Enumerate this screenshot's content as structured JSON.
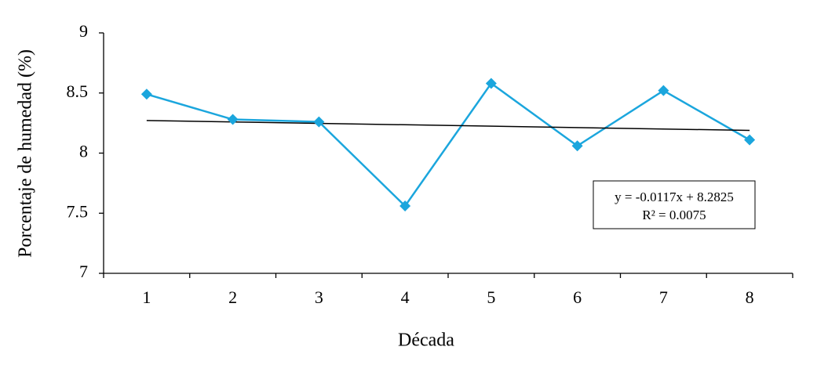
{
  "chart_data": {
    "type": "line",
    "x_label": "Década",
    "y_label": "Porcentaje de humedad (%)",
    "categories": [
      "1",
      "2",
      "3",
      "4",
      "5",
      "6",
      "7",
      "8"
    ],
    "series": [
      {
        "color": "#1ba6dd",
        "values": [
          8.49,
          8.28,
          8.26,
          7.56,
          8.58,
          8.06,
          8.52,
          8.11
        ]
      }
    ],
    "ylim": [
      7,
      9
    ],
    "yticks": [
      7,
      7.5,
      8,
      8.5,
      9
    ],
    "trendline": {
      "slope": -0.0117,
      "intercept": 8.2825,
      "color": "#000000"
    },
    "annotations": [
      "y = -0.0117x + 8.2825",
      "R² = 0.0075"
    ],
    "grid": false
  }
}
